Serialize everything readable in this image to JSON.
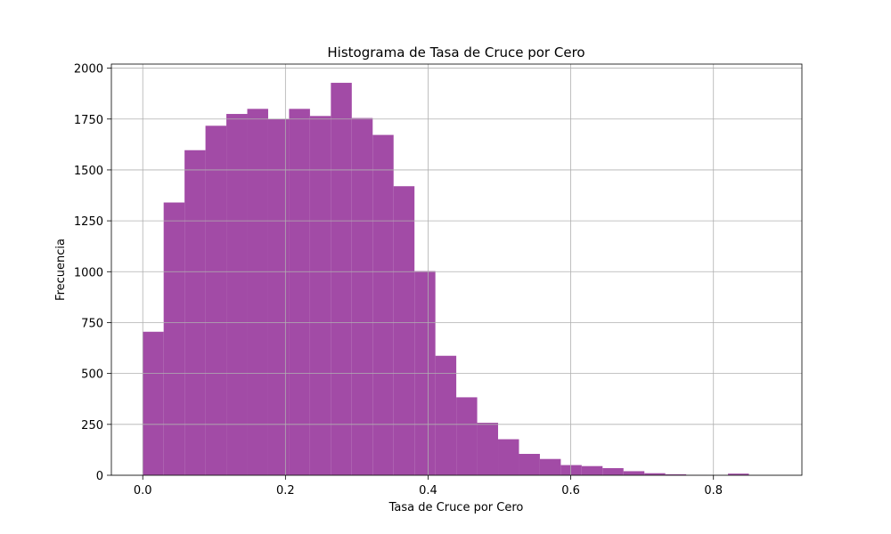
{
  "chart_data": {
    "type": "bar",
    "title": "Histograma de Tasa de Cruce por Cero",
    "xlabel": "Tasa de Cruce por Cero",
    "ylabel": "Frecuencia",
    "bar_color": "#a24ba6",
    "grid": true,
    "xlim": [
      -0.044,
      0.924
    ],
    "ylim": [
      0,
      2020
    ],
    "xticks": [
      0.0,
      0.2,
      0.4,
      0.6,
      0.8
    ],
    "xtick_labels": [
      "0.0",
      "0.2",
      "0.4",
      "0.6",
      "0.8"
    ],
    "yticks": [
      0,
      250,
      500,
      750,
      1000,
      1250,
      1500,
      1750,
      2000
    ],
    "ytick_labels": [
      "0",
      "250",
      "500",
      "750",
      "1000",
      "1250",
      "1500",
      "1750",
      "2000"
    ],
    "bin_start": 0.0,
    "bin_width": 0.0293,
    "values": [
      705,
      1340,
      1597,
      1717,
      1775,
      1800,
      1750,
      1800,
      1765,
      1928,
      1755,
      1672,
      1420,
      1003,
      587,
      383,
      258,
      177,
      105,
      80,
      50,
      45,
      35,
      20,
      10,
      5,
      2,
      1,
      8,
      0
    ]
  }
}
